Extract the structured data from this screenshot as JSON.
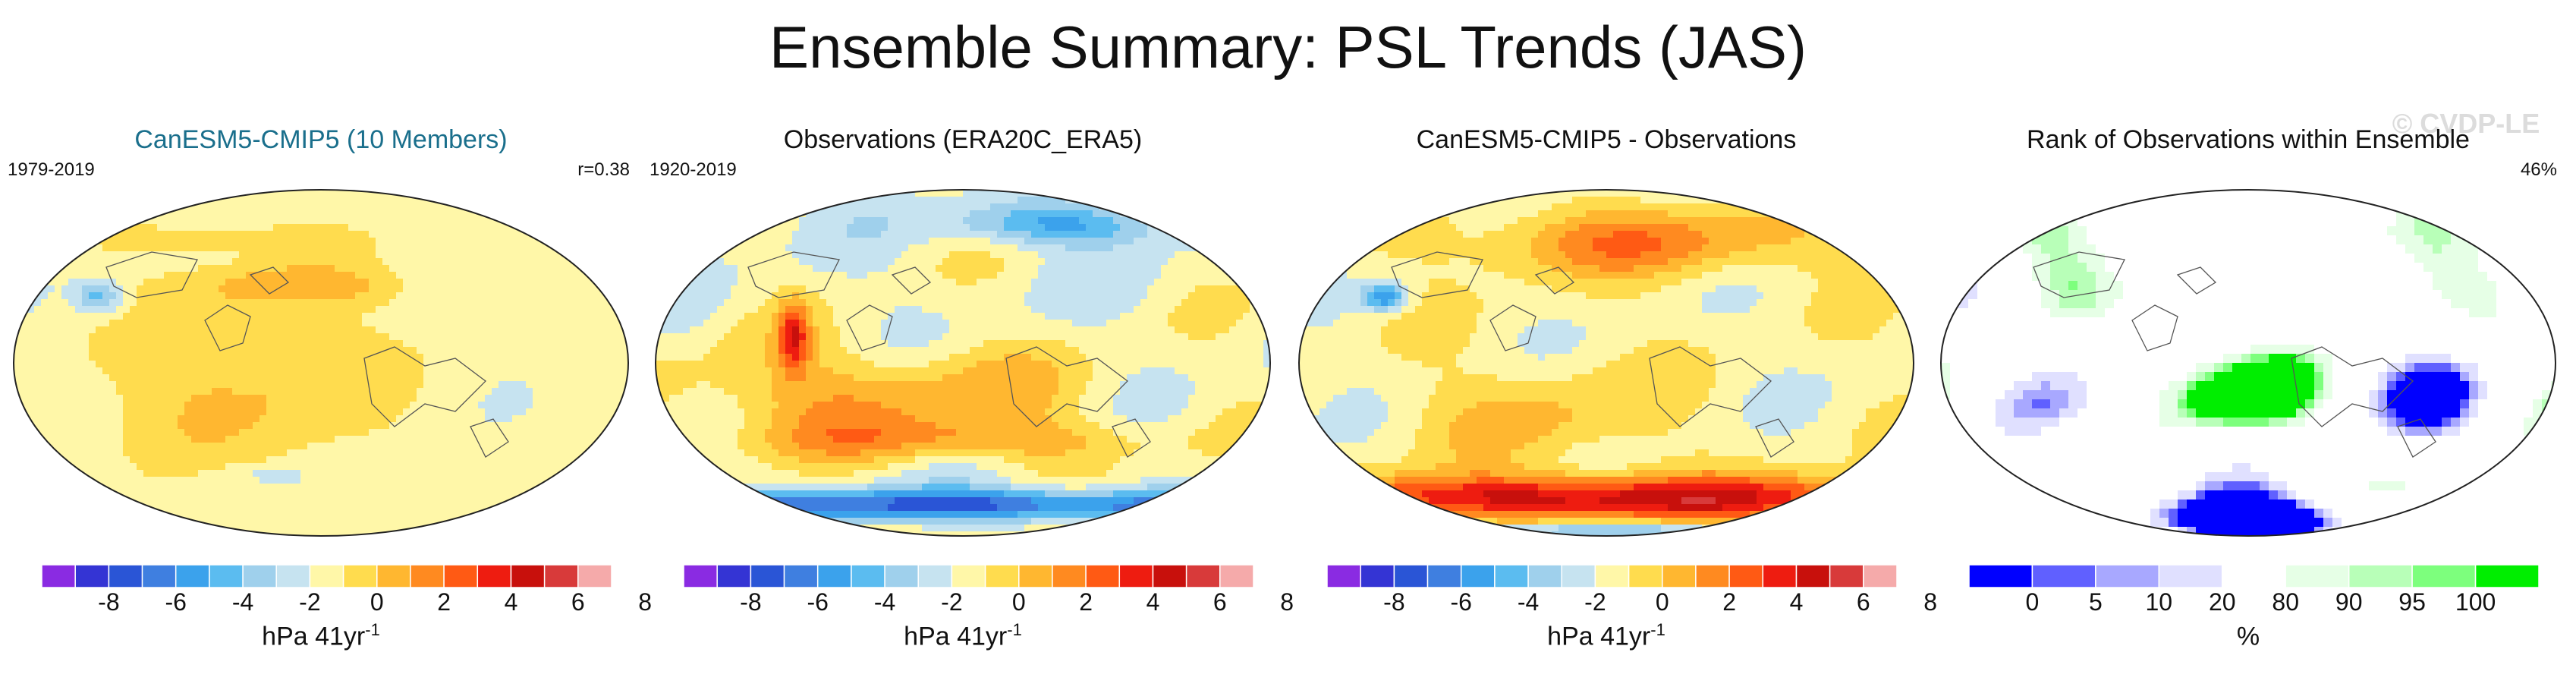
{
  "title": "Ensemble Summary: PSL Trends (JAS)",
  "watermark": "© CVDP-LE",
  "colors": {
    "diverging": [
      "#8a2be2",
      "#3434d4",
      "#2a55d6",
      "#3f7fe0",
      "#3ba2ec",
      "#5bbcf0",
      "#9fd0ec",
      "#c6e3f0",
      "#fff7a8",
      "#ffdc4e",
      "#ffb730",
      "#ff8a20",
      "#ff5a14",
      "#ee1c10",
      "#c8100c",
      "#d83a3a",
      "#f5aaaa"
    ],
    "rank": [
      "#0000ff",
      "#6060ff",
      "#a8a8ff",
      "#e0e0ff",
      "#ffffff",
      "#e6ffe6",
      "#b8ffb8",
      "#7dff7d",
      "#00ee00"
    ],
    "coast": "#555555"
  },
  "chart_data": [
    {
      "type": "heatmap",
      "name": "ensemble-mean",
      "title": "CanESM5-CMIP5 (10 Members)",
      "title_color": "#1a6f8c",
      "left_label": "1979-2019",
      "right_label": "r=0.38",
      "colorbar_type": "diverging",
      "levels": [
        -9,
        -8,
        -7,
        -6,
        -5,
        -4,
        -3,
        -2,
        -1,
        0,
        1,
        2,
        3,
        4,
        5,
        6,
        7,
        8
      ],
      "tick_labels": [
        "-8",
        "-6",
        "-4",
        "-2",
        "0",
        "2",
        "4",
        "6",
        "8"
      ],
      "units": "hPa 41yr",
      "units_sup": "-1",
      "field": "smooth"
    },
    {
      "type": "heatmap",
      "name": "observations",
      "title": "Observations (ERA20C_ERA5)",
      "title_color": "#111111",
      "left_label": "1920-2019",
      "right_label": "",
      "colorbar_type": "diverging",
      "levels": [
        -9,
        -8,
        -7,
        -6,
        -5,
        -4,
        -3,
        -2,
        -1,
        0,
        1,
        2,
        3,
        4,
        5,
        6,
        7,
        8
      ],
      "tick_labels": [
        "-8",
        "-6",
        "-4",
        "-2",
        "0",
        "2",
        "4",
        "6",
        "8"
      ],
      "units": "hPa 41yr",
      "units_sup": "-1",
      "field": "obs"
    },
    {
      "type": "heatmap",
      "name": "difference",
      "title": "CanESM5-CMIP5 - Observations",
      "title_color": "#111111",
      "left_label": "",
      "right_label": "",
      "colorbar_type": "diverging",
      "levels": [
        -9,
        -8,
        -7,
        -6,
        -5,
        -4,
        -3,
        -2,
        -1,
        0,
        1,
        2,
        3,
        4,
        5,
        6,
        7,
        8
      ],
      "tick_labels": [
        "-8",
        "-6",
        "-4",
        "-2",
        "0",
        "2",
        "4",
        "6",
        "8"
      ],
      "units": "hPa 41yr",
      "units_sup": "-1",
      "field": "diff"
    },
    {
      "type": "heatmap",
      "name": "rank",
      "title": "Rank of Observations within Ensemble",
      "title_color": "#111111",
      "left_label": "",
      "right_label": "46%",
      "colorbar_type": "rank",
      "levels": [
        0,
        5,
        10,
        20,
        80,
        90,
        95,
        100
      ],
      "tick_labels": [
        "0",
        "5",
        "10",
        "20",
        "80",
        "90",
        "95",
        "100"
      ],
      "units": "%",
      "units_sup": "",
      "field": "rank"
    }
  ]
}
